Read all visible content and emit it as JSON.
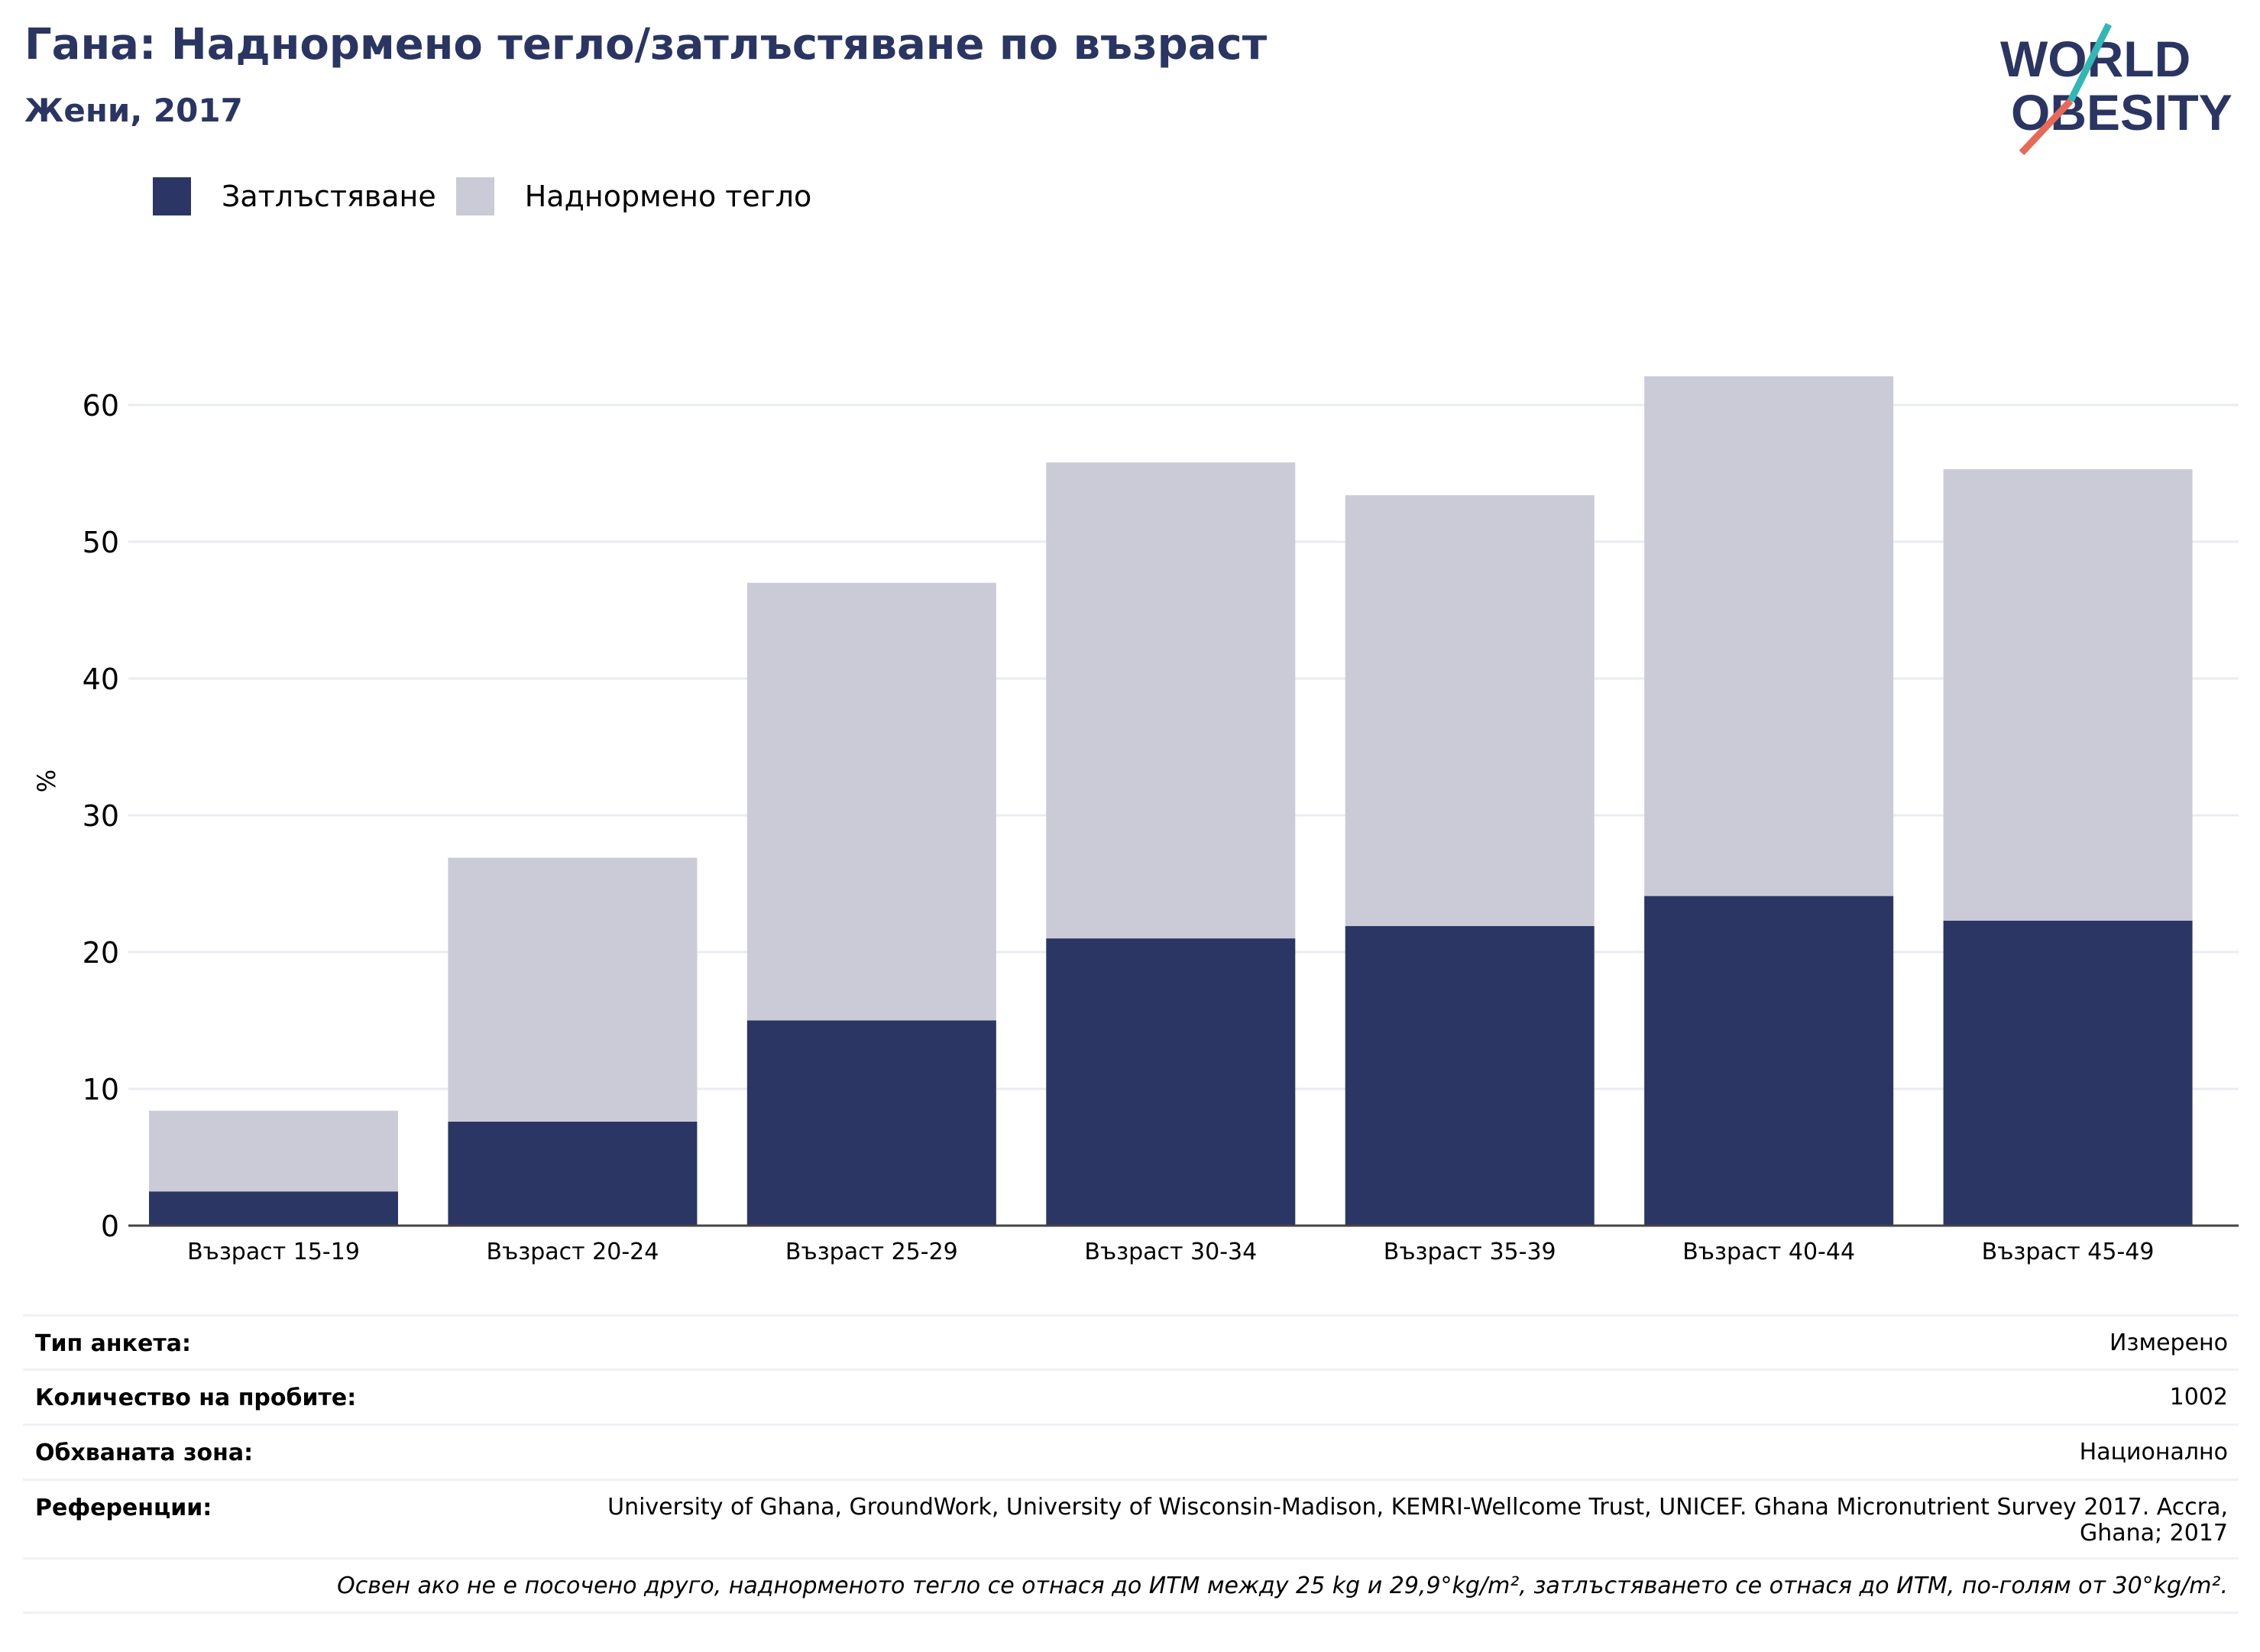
{
  "header": {
    "title": "Гана: Наднормено тегло/затлъстяване по възраст",
    "subtitle": "Жени, 2017",
    "logo_text_line1": "WORLD",
    "logo_text_line2": "OBESITY"
  },
  "legend": {
    "items": [
      {
        "label": "Затлъстяване",
        "color": "#2b3664"
      },
      {
        "label": "Наднормено тегло",
        "color": "#cacbd7"
      }
    ]
  },
  "chart_data": {
    "type": "bar",
    "stacked": true,
    "categories": [
      "Възраст 15-19",
      "Възраст 20-24",
      "Възраст 25-29",
      "Възраст 30-34",
      "Възраст 35-39",
      "Възраст 40-44",
      "Възраст 45-49"
    ],
    "series": [
      {
        "name": "Затлъстяване",
        "values": [
          2.5,
          7.6,
          15.0,
          21.0,
          21.9,
          24.1,
          22.3
        ],
        "color": "#2b3664"
      },
      {
        "name": "Наднормено тегло",
        "values": [
          5.9,
          19.3,
          32.0,
          34.8,
          31.5,
          38.0,
          33.0
        ],
        "color": "#cacbd7"
      }
    ],
    "ylabel": "%",
    "yticks": [
      "0",
      "10",
      "20",
      "30",
      "40",
      "50",
      "60"
    ],
    "ylim": [
      0,
      66
    ],
    "grid": true,
    "legend_position": "top-left"
  },
  "info": {
    "survey_type_label": "Тип анкета:",
    "survey_type_value": "Измерено",
    "sample_size_label": "Количество на пробите:",
    "sample_size_value": "1002",
    "area_label": "Обхваната зона:",
    "area_value": "Национално",
    "references_label": "Референции:",
    "references_line1": "University of Ghana, GroundWork, University of Wisconsin-Madison, KEMRI-Wellcome Trust, UNICEF. Ghana Micronutrient Survey 2017. Accra,",
    "references_line2": "Ghana; 2017",
    "note": "Освен ако не е посочено друго, наднорменото тегло се отнася до ИТМ между 25 kg и 29,9°kg/m², затлъстяването се отнася до ИТМ, по-голям от 30°kg/m²."
  }
}
